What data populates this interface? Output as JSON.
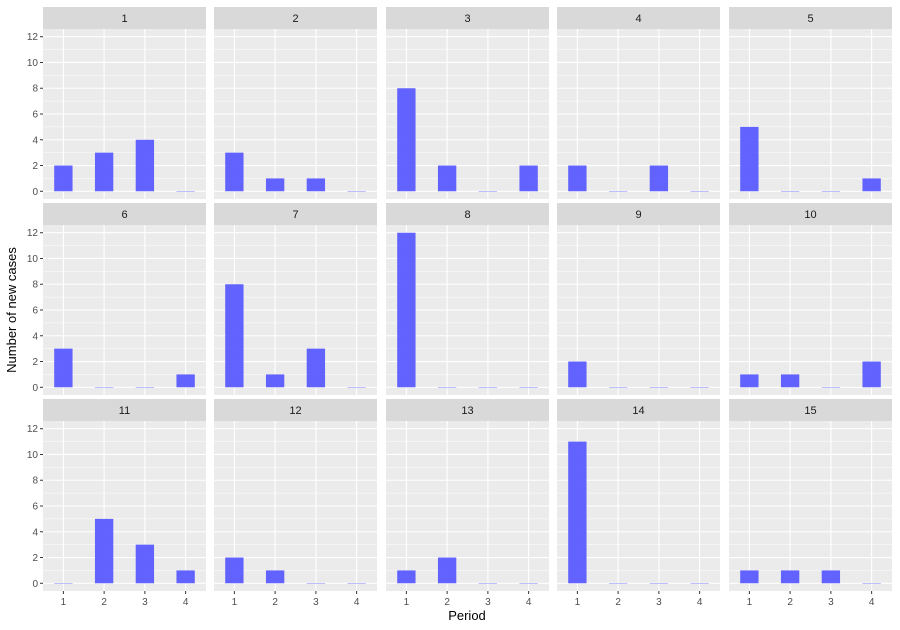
{
  "chart_data": {
    "type": "bar",
    "facet_layout": "3x5",
    "xlabel": "Period",
    "ylabel": "Number of new cases",
    "x_ticks": [
      1,
      2,
      3,
      4
    ],
    "y_ticks": [
      0,
      2,
      4,
      6,
      8,
      10,
      12
    ],
    "xlim": [
      0.5,
      4.5
    ],
    "ylim": [
      -0.6,
      12.6
    ],
    "grid": true,
    "colors": {
      "bar": "#5b5bff",
      "panel_bg": "#ebebeb",
      "strip_bg": "#d9d9d9",
      "grid": "#ffffff"
    },
    "facets": [
      {
        "label": "1",
        "values": [
          2,
          3,
          4,
          0
        ]
      },
      {
        "label": "2",
        "values": [
          3,
          1,
          1,
          0
        ]
      },
      {
        "label": "3",
        "values": [
          8,
          2,
          0,
          2
        ]
      },
      {
        "label": "4",
        "values": [
          2,
          0,
          2,
          0
        ]
      },
      {
        "label": "5",
        "values": [
          5,
          0,
          0,
          1
        ]
      },
      {
        "label": "6",
        "values": [
          3,
          0,
          0,
          1
        ]
      },
      {
        "label": "7",
        "values": [
          8,
          1,
          3,
          0
        ]
      },
      {
        "label": "8",
        "values": [
          12,
          0,
          0,
          0
        ]
      },
      {
        "label": "9",
        "values": [
          2,
          0,
          0,
          0
        ]
      },
      {
        "label": "10",
        "values": [
          1,
          1,
          0,
          2
        ]
      },
      {
        "label": "11",
        "values": [
          0,
          5,
          3,
          1
        ]
      },
      {
        "label": "12",
        "values": [
          2,
          1,
          0,
          0
        ]
      },
      {
        "label": "13",
        "values": [
          1,
          2,
          0,
          0
        ]
      },
      {
        "label": "14",
        "values": [
          11,
          0,
          0,
          0
        ]
      },
      {
        "label": "15",
        "values": [
          1,
          1,
          1,
          0
        ]
      }
    ]
  }
}
